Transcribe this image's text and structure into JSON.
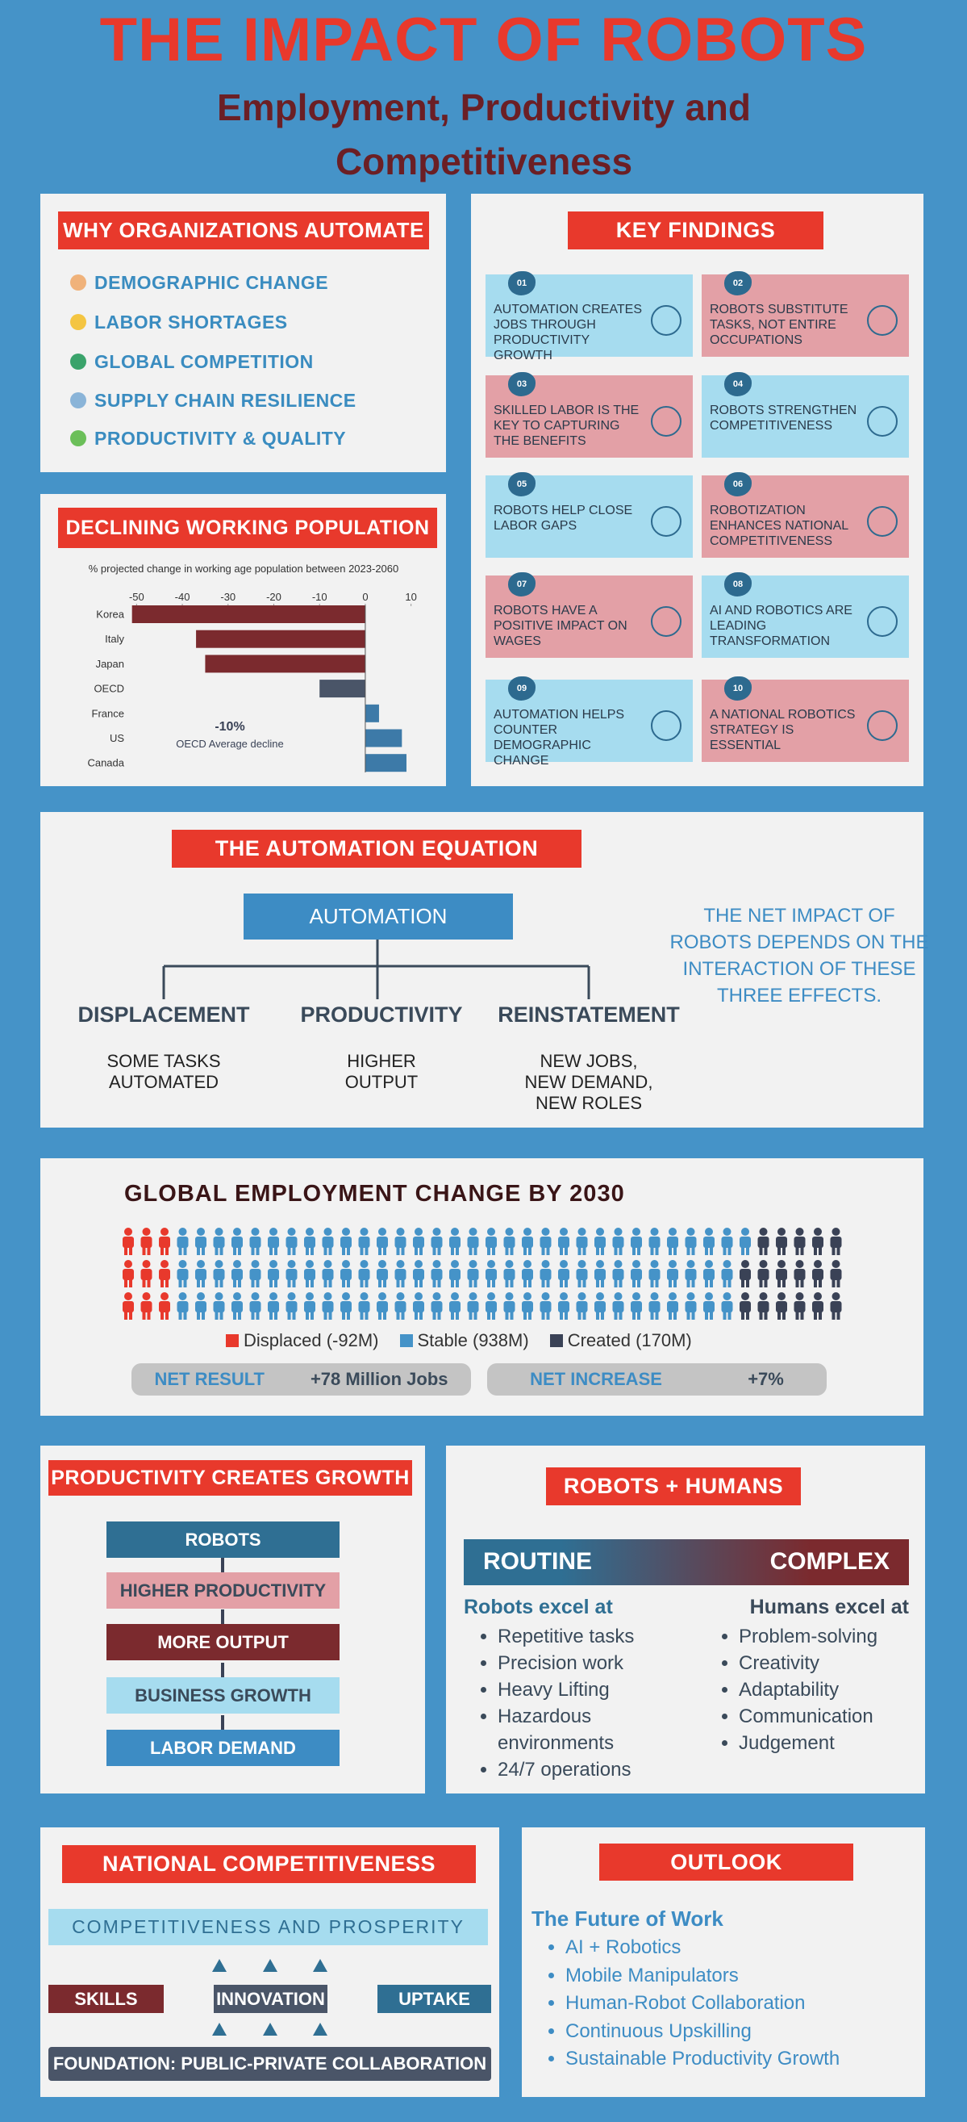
{
  "header": {
    "title": "THE IMPACT OF ROBOTS",
    "subtitle": "Employment, Productivity and Competitiveness"
  },
  "why_automate": {
    "title": "WHY ORGANIZATIONS AUTOMATE",
    "items": [
      "DEMOGRAPHIC CHANGE",
      "LABOR SHORTAGES",
      "GLOBAL COMPETITION",
      "SUPPLY CHAIN RESILIENCE",
      "PRODUCTIVITY & QUALITY"
    ]
  },
  "chart_data": {
    "type": "bar",
    "orientation": "horizontal",
    "title": "DECLINING WORKING POPULATION",
    "subtitle": "% projected change in working age population between 2023-2060",
    "categories": [
      "Korea",
      "Italy",
      "Japan",
      "OECD",
      "France",
      "US",
      "Canada"
    ],
    "values": [
      -51,
      -37,
      -35,
      -10,
      3,
      8,
      9
    ],
    "colors": [
      "#7b2a2e",
      "#7b2a2e",
      "#7b2a2e",
      "#4a5568",
      "#3d7aa8",
      "#3d7aa8",
      "#3d7aa8"
    ],
    "xlim": [
      -52,
      12
    ],
    "xticks": [
      -50,
      -40,
      -30,
      -20,
      -10,
      0,
      10
    ],
    "annotation": {
      "label": "-10%",
      "text": "OECD Average decline"
    }
  },
  "key_findings": {
    "title": "KEY FINDINGS",
    "items": [
      {
        "number": "01",
        "text": "AUTOMATION CREATES JOBS THROUGH PRODUCTIVITY GROWTH",
        "color": "#a6dcef"
      },
      {
        "number": "02",
        "text": "ROBOTS SUBSTITUTE TASKS, NOT ENTIRE OCCUPATIONS",
        "color": "#e3a0a6"
      },
      {
        "number": "03",
        "text": "SKILLED LABOR IS THE KEY TO CAPTURING THE BENEFITS",
        "color": "#e3a0a6"
      },
      {
        "number": "04",
        "text": "ROBOTS STRENGTHEN COMPETITIVENESS",
        "color": "#a6dcef"
      },
      {
        "number": "05",
        "text": "ROBOTS HELP CLOSE LABOR GAPS",
        "color": "#a6dcef"
      },
      {
        "number": "06",
        "text": "ROBOTIZATION ENHANCES NATIONAL COMPETITIVENESS",
        "color": "#e3a0a6"
      },
      {
        "number": "07",
        "text": "ROBOTS HAVE A POSITIVE IMPACT ON WAGES",
        "color": "#e3a0a6"
      },
      {
        "number": "08",
        "text": "AI AND ROBOTICS ARE LEADING TRANSFORMATION",
        "color": "#a6dcef"
      },
      {
        "number": "09",
        "text": "AUTOMATION HELPS COUNTER DEMOGRAPHIC CHANGE",
        "color": "#a6dcef"
      },
      {
        "number": "10",
        "text": "A NATIONAL ROBOTICS STRATEGY IS ESSENTIAL",
        "color": "#e3a0a6"
      }
    ]
  },
  "automation_equation": {
    "title": "THE AUTOMATION EQUATION",
    "center": "AUTOMATION",
    "effects": [
      {
        "name": "DISPLACEMENT",
        "detail": "SOME TASKS AUTOMATED"
      },
      {
        "name": "PRODUCTIVITY",
        "detail": "HIGHER OUTPUT"
      },
      {
        "name": "REINSTATEMENT",
        "detail": "NEW JOBS, NEW DEMAND, NEW ROLES"
      }
    ],
    "note": "THE NET IMPACT OF ROBOTS DEPENDS ON THE INTERACTION OF THESE THREE EFFECTS."
  },
  "global_employment": {
    "title": "GLOBAL EMPLOYMENT CHANGE BY 2030",
    "series": [
      {
        "name": "Displaced (-92M)",
        "value": -92,
        "color": "#e8392c"
      },
      {
        "name": "Stable (938M)",
        "value": 938,
        "color": "#4593c8"
      },
      {
        "name": "Created (170M)",
        "value": 170,
        "color": "#3a4256"
      }
    ],
    "summary": [
      {
        "label": "NET RESULT",
        "value": "+78 Million Jobs"
      },
      {
        "label": "NET INCREASE",
        "value": "+7%"
      }
    ]
  },
  "productivity_growth": {
    "title": "PRODUCTIVITY CREATES GROWTH",
    "steps": [
      {
        "text": "ROBOTS",
        "color": "#2f6f93"
      },
      {
        "text": "HIGHER PRODUCTIVITY",
        "color": "#e3a0a6"
      },
      {
        "text": "MORE OUTPUT",
        "color": "#7b2a2e"
      },
      {
        "text": "BUSINESS GROWTH",
        "color": "#a6dcef"
      },
      {
        "text": "LABOR DEMAND",
        "color": "#3d8cc4"
      }
    ]
  },
  "robots_humans": {
    "title": "ROBOTS + HUMANS",
    "scale": [
      "ROUTINE",
      "COMPLEX"
    ],
    "robots": {
      "heading": "Robots excel at",
      "items": [
        "Repetitive tasks",
        "Precision work",
        "Heavy Lifting",
        "Hazardous environments",
        "24/7 operations"
      ]
    },
    "humans": {
      "heading": "Humans excel at",
      "items": [
        "Problem-solving",
        "Creativity",
        "Adaptability",
        "Communication",
        "Judgement"
      ]
    }
  },
  "national_competitiveness": {
    "title": "NATIONAL COMPETITIVENESS",
    "top": "COMPETITIVENESS AND PROSPERITY",
    "pillars": [
      {
        "text": "SKILLS",
        "color": "#7b2a2e"
      },
      {
        "text": "INNOVATION",
        "color": "#4a5568"
      },
      {
        "text": "UPTAKE",
        "color": "#2f6f93"
      }
    ],
    "foundation": "FOUNDATION: PUBLIC-PRIVATE COLLABORATION"
  },
  "outlook": {
    "title": "OUTLOOK",
    "heading": "The Future of Work",
    "items": [
      "AI + Robotics",
      "Mobile Manipulators",
      "Human-Robot Collaboration",
      "Continuous Upskilling",
      "Sustainable Productivity Growth"
    ]
  }
}
